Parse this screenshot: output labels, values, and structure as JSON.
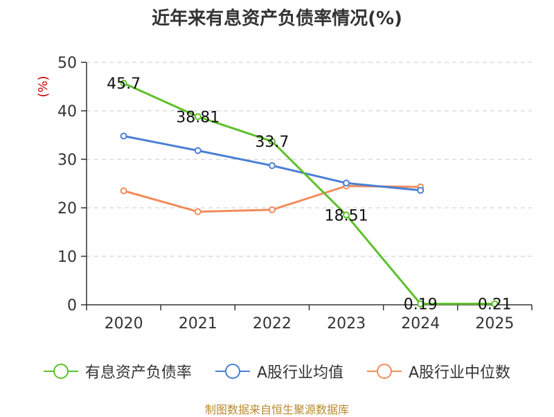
{
  "chart_data": {
    "type": "line",
    "title": "近年来有息资产负债率情况(%)",
    "ylabel": "(%)",
    "xlabel": "",
    "ylim": [
      0,
      50
    ],
    "yticks": [
      0,
      10,
      20,
      30,
      40,
      50
    ],
    "categories": [
      "2020",
      "2021",
      "2022",
      "2023",
      "2024",
      "2025"
    ],
    "grid": true,
    "legend_position": "bottom",
    "series": [
      {
        "name": "有息资产负债率",
        "color": "#5cc02a",
        "values": [
          45.7,
          38.81,
          33.7,
          18.51,
          0.19,
          0.21
        ],
        "labels": [
          "45.7",
          "38.81",
          "33.7",
          "18.51",
          "0.19",
          "0.21"
        ]
      },
      {
        "name": "A股行业均值",
        "color": "#4a7fd4",
        "values": [
          34.8,
          31.8,
          28.7,
          25.1,
          23.6,
          null
        ]
      },
      {
        "name": "A股行业中位数",
        "color": "#f28b5b",
        "values": [
          23.5,
          19.2,
          19.6,
          24.5,
          24.3,
          null
        ]
      }
    ]
  },
  "source": "制图数据来自恒生聚源数据库"
}
